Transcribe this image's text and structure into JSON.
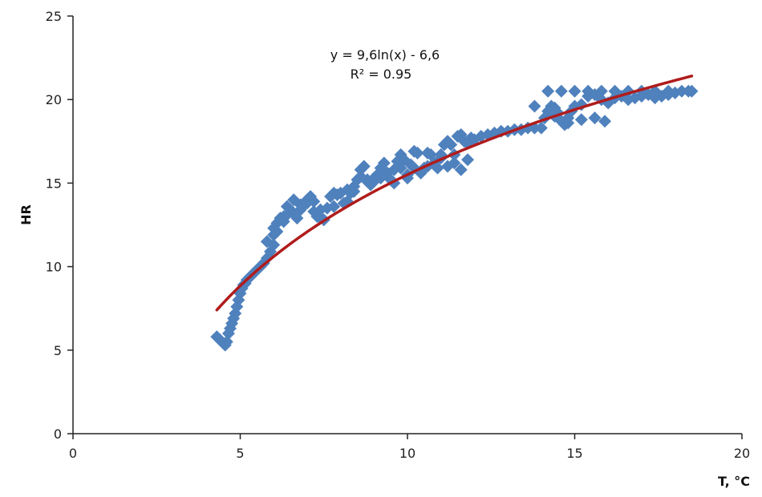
{
  "chart_data": {
    "type": "scatter",
    "title": "",
    "xlabel": "T, °C",
    "ylabel": "HR",
    "xlim": [
      0,
      20
    ],
    "ylim": [
      0,
      25
    ],
    "x_ticks": [
      "0",
      "5",
      "10",
      "15",
      "20"
    ],
    "y_ticks": [
      "0",
      "5",
      "10",
      "15",
      "20",
      "25"
    ],
    "grid": false,
    "legend": "none",
    "marker_color": "#4f81bd",
    "trend_color": "#b01c1c",
    "trendline": {
      "kind": "logarithmic",
      "a": 9.6,
      "b": -6.6,
      "x_range": [
        4.3,
        18.5
      ],
      "equation_label": "y = 9,6ln(x) - 6,6",
      "r2_label": "R² = 0.95"
    },
    "series": [
      {
        "x": [
          4.3,
          4.4,
          4.5,
          4.55,
          4.6,
          4.65,
          4.7,
          4.75,
          4.8,
          4.85,
          4.9,
          4.95,
          5.0,
          5.05,
          5.1,
          5.15,
          5.2,
          5.3,
          5.4,
          5.5,
          5.6,
          5.7,
          5.8,
          5.9,
          6.0,
          6.0,
          6.1,
          6.1,
          6.2,
          6.3,
          6.3,
          6.4,
          6.5,
          6.6,
          6.7,
          6.8,
          6.9,
          7.0,
          7.1,
          7.2,
          7.2,
          7.3,
          7.4,
          7.5,
          7.6,
          7.7,
          7.8,
          7.9,
          8.0,
          8.1,
          8.2,
          8.3,
          8.4,
          8.5,
          8.6,
          8.7,
          8.8,
          8.9,
          9.0,
          9.1,
          9.2,
          9.3,
          9.4,
          9.5,
          9.6,
          9.7,
          9.8,
          9.9,
          10.0,
          10.1,
          10.2,
          10.3,
          10.4,
          10.5,
          10.6,
          10.7,
          10.8,
          10.9,
          11.0,
          11.1,
          11.2,
          11.3,
          11.4,
          11.5,
          11.6,
          11.7,
          11.8,
          11.9,
          12.0,
          12.2,
          12.4,
          12.6,
          12.8,
          13.0,
          13.2,
          13.4,
          13.6,
          13.8,
          14.0,
          14.1,
          14.2,
          14.3,
          14.4,
          14.5,
          14.6,
          14.7,
          14.8,
          14.9,
          15.0,
          15.2,
          15.4,
          15.6,
          15.8,
          16.0,
          16.2,
          16.4,
          16.6,
          16.8,
          17.0,
          17.2,
          17.4,
          17.6,
          17.8,
          18.0,
          18.2,
          18.4,
          18.5,
          14.2,
          14.6,
          15.0,
          15.4,
          15.8,
          16.2,
          16.6,
          17.0,
          17.4,
          17.8,
          13.8,
          14.4,
          14.8,
          15.2,
          15.6,
          15.9,
          5.8,
          6.0,
          6.2,
          6.4,
          6.6,
          6.8,
          7.0,
          7.4,
          7.8,
          8.2,
          8.6,
          9.0,
          9.4,
          9.8,
          10.2,
          10.6,
          11.0,
          11.4,
          11.8,
          8.4,
          8.8,
          9.2,
          9.6,
          10.0,
          10.4,
          10.8,
          11.2,
          11.6
        ],
        "y": [
          5.8,
          5.6,
          5.4,
          5.3,
          5.5,
          6.0,
          6.3,
          6.6,
          6.9,
          7.2,
          7.6,
          8.0,
          8.4,
          8.7,
          8.9,
          9.0,
          9.2,
          9.4,
          9.6,
          9.8,
          10.0,
          10.2,
          10.5,
          10.9,
          11.3,
          11.9,
          12.1,
          12.6,
          12.9,
          13.0,
          12.7,
          13.1,
          13.4,
          13.2,
          12.9,
          13.4,
          13.7,
          14.0,
          14.2,
          13.3,
          13.9,
          13.0,
          12.9,
          12.8,
          13.5,
          14.2,
          14.4,
          14.3,
          14.4,
          13.8,
          13.9,
          14.4,
          14.8,
          15.2,
          15.8,
          16.0,
          15.2,
          14.9,
          15.1,
          15.5,
          15.9,
          16.2,
          15.6,
          15.2,
          15.8,
          16.3,
          16.7,
          16.4,
          15.5,
          16.1,
          16.9,
          16.8,
          15.6,
          15.9,
          16.8,
          16.7,
          16.1,
          15.9,
          16.7,
          17.3,
          17.5,
          17.3,
          16.7,
          17.8,
          17.9,
          17.5,
          17.4,
          17.7,
          17.6,
          17.8,
          17.9,
          18.0,
          18.1,
          18.1,
          18.2,
          18.2,
          18.3,
          18.3,
          18.3,
          18.9,
          19.3,
          19.6,
          19.5,
          19.2,
          18.7,
          18.5,
          18.9,
          19.3,
          19.6,
          19.7,
          20.2,
          20.3,
          20.0,
          19.8,
          20.1,
          20.2,
          20.0,
          20.1,
          20.2,
          20.3,
          20.1,
          20.2,
          20.3,
          20.4,
          20.5,
          20.5,
          20.5,
          20.5,
          20.5,
          20.5,
          20.5,
          20.5,
          20.5,
          20.5,
          20.5,
          20.5,
          20.5,
          19.6,
          19.0,
          18.6,
          18.8,
          18.9,
          18.7,
          11.5,
          12.3,
          12.9,
          13.6,
          14.0,
          13.7,
          13.8,
          13.4,
          13.6,
          14.6,
          15.4,
          15.3,
          15.6,
          15.9,
          15.9,
          16.0,
          16.5,
          16.2,
          16.4,
          14.5,
          15.1,
          15.3,
          15.0,
          15.3,
          15.7,
          16.2,
          16.0,
          15.8
        ]
      }
    ]
  }
}
